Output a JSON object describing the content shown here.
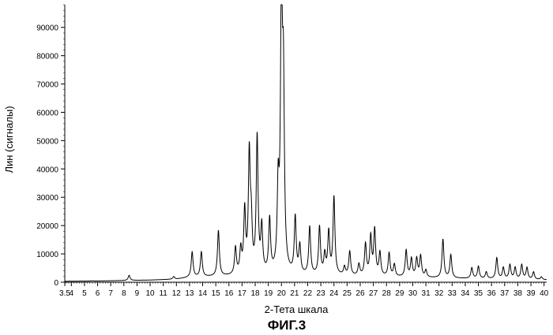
{
  "chart_data": {
    "type": "line",
    "title": "",
    "xlabel": "2-Тета шкала",
    "ylabel": "Лин (сигналы)",
    "caption": "ФИГ.3",
    "xlim": [
      3.5,
      40.2
    ],
    "ylim": [
      0,
      98000
    ],
    "xticks": [
      {
        "value": 3.5,
        "label": "3.5"
      },
      {
        "value": 4,
        "label": "4"
      },
      {
        "value": 5,
        "label": "5"
      },
      {
        "value": 6,
        "label": "6"
      },
      {
        "value": 7,
        "label": "7"
      },
      {
        "value": 8,
        "label": "8"
      },
      {
        "value": 9,
        "label": "9"
      },
      {
        "value": 10,
        "label": "10"
      },
      {
        "value": 11,
        "label": "11"
      },
      {
        "value": 12,
        "label": "12"
      },
      {
        "value": 13,
        "label": "13"
      },
      {
        "value": 14,
        "label": "14"
      },
      {
        "value": 15,
        "label": "15"
      },
      {
        "value": 16,
        "label": "16"
      },
      {
        "value": 17,
        "label": "17"
      },
      {
        "value": 18,
        "label": "18"
      },
      {
        "value": 19,
        "label": "19"
      },
      {
        "value": 20,
        "label": "20"
      },
      {
        "value": 21,
        "label": "21"
      },
      {
        "value": 22,
        "label": "22"
      },
      {
        "value": 23,
        "label": "23"
      },
      {
        "value": 24,
        "label": "24"
      },
      {
        "value": 25,
        "label": "25"
      },
      {
        "value": 26,
        "label": "26"
      },
      {
        "value": 27,
        "label": "27"
      },
      {
        "value": 28,
        "label": "28"
      },
      {
        "value": 29,
        "label": "29"
      },
      {
        "value": 30,
        "label": "30"
      },
      {
        "value": 31,
        "label": "31"
      },
      {
        "value": 32,
        "label": "32"
      },
      {
        "value": 33,
        "label": "33"
      },
      {
        "value": 34,
        "label": "34"
      },
      {
        "value": 35,
        "label": "35"
      },
      {
        "value": 36,
        "label": "36"
      },
      {
        "value": 37,
        "label": "37"
      },
      {
        "value": 38,
        "label": "38"
      },
      {
        "value": 39,
        "label": "39"
      },
      {
        "value": 40,
        "label": "40"
      }
    ],
    "yticks": [
      {
        "value": 0,
        "label": "0"
      },
      {
        "value": 10000,
        "label": "10000"
      },
      {
        "value": 20000,
        "label": "20000"
      },
      {
        "value": 30000,
        "label": "30000"
      },
      {
        "value": 40000,
        "label": "40000"
      },
      {
        "value": 50000,
        "label": "50000"
      },
      {
        "value": 60000,
        "label": "60000"
      },
      {
        "value": 70000,
        "label": "70000"
      },
      {
        "value": 80000,
        "label": "80000"
      },
      {
        "value": 90000,
        "label": "90000"
      }
    ],
    "grid": false,
    "line_color": "#000000",
    "baseline": [
      [
        3.5,
        300
      ],
      [
        6,
        400
      ],
      [
        10,
        700
      ],
      [
        12,
        1000
      ],
      [
        13,
        1600
      ],
      [
        16,
        2000
      ],
      [
        20,
        2200
      ],
      [
        24,
        2200
      ],
      [
        28,
        1800
      ],
      [
        32,
        1400
      ],
      [
        36,
        1100
      ],
      [
        40.2,
        800
      ]
    ],
    "peaks": [
      {
        "x": 5.6,
        "y": 500
      },
      {
        "x": 8.4,
        "y": 2400
      },
      {
        "x": 11.8,
        "y": 1900
      },
      {
        "x": 13.2,
        "y": 10500
      },
      {
        "x": 13.9,
        "y": 10500
      },
      {
        "x": 15.2,
        "y": 18000
      },
      {
        "x": 16.5,
        "y": 11500
      },
      {
        "x": 16.9,
        "y": 10500
      },
      {
        "x": 17.2,
        "y": 24000
      },
      {
        "x": 17.55,
        "y": 43000
      },
      {
        "x": 17.7,
        "y": 18000
      },
      {
        "x": 18.15,
        "y": 50000
      },
      {
        "x": 18.5,
        "y": 18000
      },
      {
        "x": 19.1,
        "y": 21000
      },
      {
        "x": 19.75,
        "y": 30000
      },
      {
        "x": 20.0,
        "y": 98000
      },
      {
        "x": 20.15,
        "y": 63000
      },
      {
        "x": 21.05,
        "y": 22000
      },
      {
        "x": 21.4,
        "y": 12000
      },
      {
        "x": 22.15,
        "y": 19000
      },
      {
        "x": 22.9,
        "y": 19000
      },
      {
        "x": 23.3,
        "y": 9000
      },
      {
        "x": 23.6,
        "y": 17000
      },
      {
        "x": 24.0,
        "y": 29500
      },
      {
        "x": 24.8,
        "y": 5000
      },
      {
        "x": 25.2,
        "y": 10500
      },
      {
        "x": 25.9,
        "y": 6000
      },
      {
        "x": 26.4,
        "y": 13000
      },
      {
        "x": 26.8,
        "y": 15500
      },
      {
        "x": 27.1,
        "y": 18000
      },
      {
        "x": 27.5,
        "y": 10000
      },
      {
        "x": 28.2,
        "y": 10000
      },
      {
        "x": 28.6,
        "y": 6000
      },
      {
        "x": 29.5,
        "y": 11000
      },
      {
        "x": 29.9,
        "y": 8000
      },
      {
        "x": 30.3,
        "y": 8000
      },
      {
        "x": 30.6,
        "y": 9000
      },
      {
        "x": 31.0,
        "y": 4000
      },
      {
        "x": 32.3,
        "y": 15000
      },
      {
        "x": 32.9,
        "y": 9500
      },
      {
        "x": 34.5,
        "y": 5000
      },
      {
        "x": 35.0,
        "y": 5500
      },
      {
        "x": 35.6,
        "y": 3500
      },
      {
        "x": 36.4,
        "y": 8500
      },
      {
        "x": 36.9,
        "y": 5000
      },
      {
        "x": 37.4,
        "y": 6000
      },
      {
        "x": 37.8,
        "y": 5000
      },
      {
        "x": 38.3,
        "y": 6000
      },
      {
        "x": 38.7,
        "y": 5000
      },
      {
        "x": 39.2,
        "y": 3500
      },
      {
        "x": 39.8,
        "y": 1800
      }
    ]
  }
}
